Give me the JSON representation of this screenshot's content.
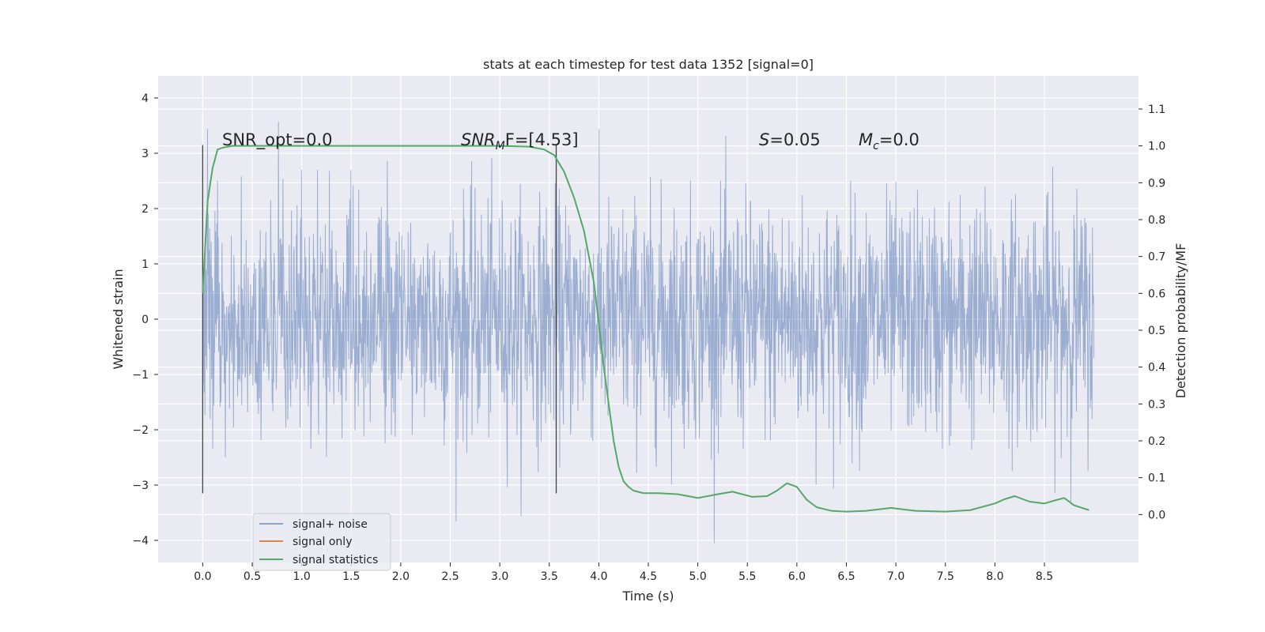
{
  "chart_data": {
    "type": "line",
    "title": "stats at each timestep for test data 1352 [signal=0]",
    "xlabel": "Time (s)",
    "ylabel": "Whitened strain",
    "ylabel_right": "Detection probability/MF",
    "xlim": [
      -0.45,
      9.45
    ],
    "ylim": [
      -4.4,
      4.4
    ],
    "ylim_right": [
      -0.13,
      1.19
    ],
    "x_ticks": [
      "0.0",
      "0.5",
      "1.0",
      "1.5",
      "2.0",
      "2.5",
      "3.0",
      "3.5",
      "4.0",
      "4.5",
      "5.0",
      "5.5",
      "6.0",
      "6.5",
      "7.0",
      "7.5",
      "8.0",
      "8.5"
    ],
    "y_ticks": [
      "4",
      "3",
      "2",
      "1",
      "0",
      "−1",
      "−2",
      "−3",
      "−4"
    ],
    "y_ticks_right": [
      "1.1",
      "1.0",
      "0.9",
      "0.8",
      "0.7",
      "0.6",
      "0.5",
      "0.4",
      "0.3",
      "0.2",
      "0.1",
      "0.0"
    ],
    "grid": true,
    "legend_position": "lower-left",
    "annotations": {
      "snr_opt": "SNR_opt=0.0",
      "snr_mf_main": "SNR",
      "snr_mf_sub": "M",
      "snr_mf_tail": "F=[4.53]",
      "s_var": "S",
      "s_val": "=0.05",
      "mc_var": "M",
      "mc_sub": "c",
      "mc_val": "=0.0"
    },
    "vertical_markers": [
      {
        "x": 0.0,
        "y_range": [
          -3.15,
          3.15
        ]
      },
      {
        "x": 3.57,
        "y_range": [
          -3.15,
          3.15
        ]
      }
    ],
    "series": [
      {
        "name": "signal+ noise",
        "color": "#4c72b0",
        "axis": "left",
        "note_noise_envelope": {
          "x_range": [
            0.0,
            9.0
          ],
          "core": 1.25,
          "peak_high": 4.0,
          "peak_low": -4.05
        }
      },
      {
        "name": "signal only",
        "color": "#dd8452",
        "axis": "left",
        "x": [],
        "y": []
      },
      {
        "name": "signal statistics",
        "color": "#55a868",
        "axis": "right",
        "x": [
          0.0,
          0.05,
          0.1,
          0.15,
          0.2,
          0.3,
          0.5,
          1.0,
          2.0,
          3.0,
          3.3,
          3.45,
          3.55,
          3.65,
          3.75,
          3.85,
          3.95,
          4.0,
          4.05,
          4.1,
          4.15,
          4.2,
          4.25,
          4.3,
          4.35,
          4.45,
          4.6,
          4.8,
          5.0,
          5.2,
          5.35,
          5.55,
          5.7,
          5.8,
          5.9,
          6.0,
          6.1,
          6.2,
          6.35,
          6.5,
          6.7,
          6.95,
          7.2,
          7.5,
          7.75,
          8.0,
          8.1,
          8.2,
          8.35,
          8.5,
          8.6,
          8.7,
          8.8,
          8.95
        ],
        "y": [
          0.6,
          0.85,
          0.94,
          0.99,
          0.995,
          1.0,
          1.0,
          1.0,
          1.0,
          1.0,
          0.998,
          0.99,
          0.975,
          0.93,
          0.86,
          0.77,
          0.63,
          0.52,
          0.4,
          0.3,
          0.2,
          0.13,
          0.09,
          0.075,
          0.065,
          0.058,
          0.058,
          0.055,
          0.045,
          0.055,
          0.062,
          0.048,
          0.05,
          0.065,
          0.085,
          0.075,
          0.04,
          0.02,
          0.01,
          0.008,
          0.01,
          0.018,
          0.01,
          0.008,
          0.012,
          0.03,
          0.042,
          0.05,
          0.035,
          0.03,
          0.038,
          0.045,
          0.025,
          0.012
        ]
      }
    ]
  }
}
